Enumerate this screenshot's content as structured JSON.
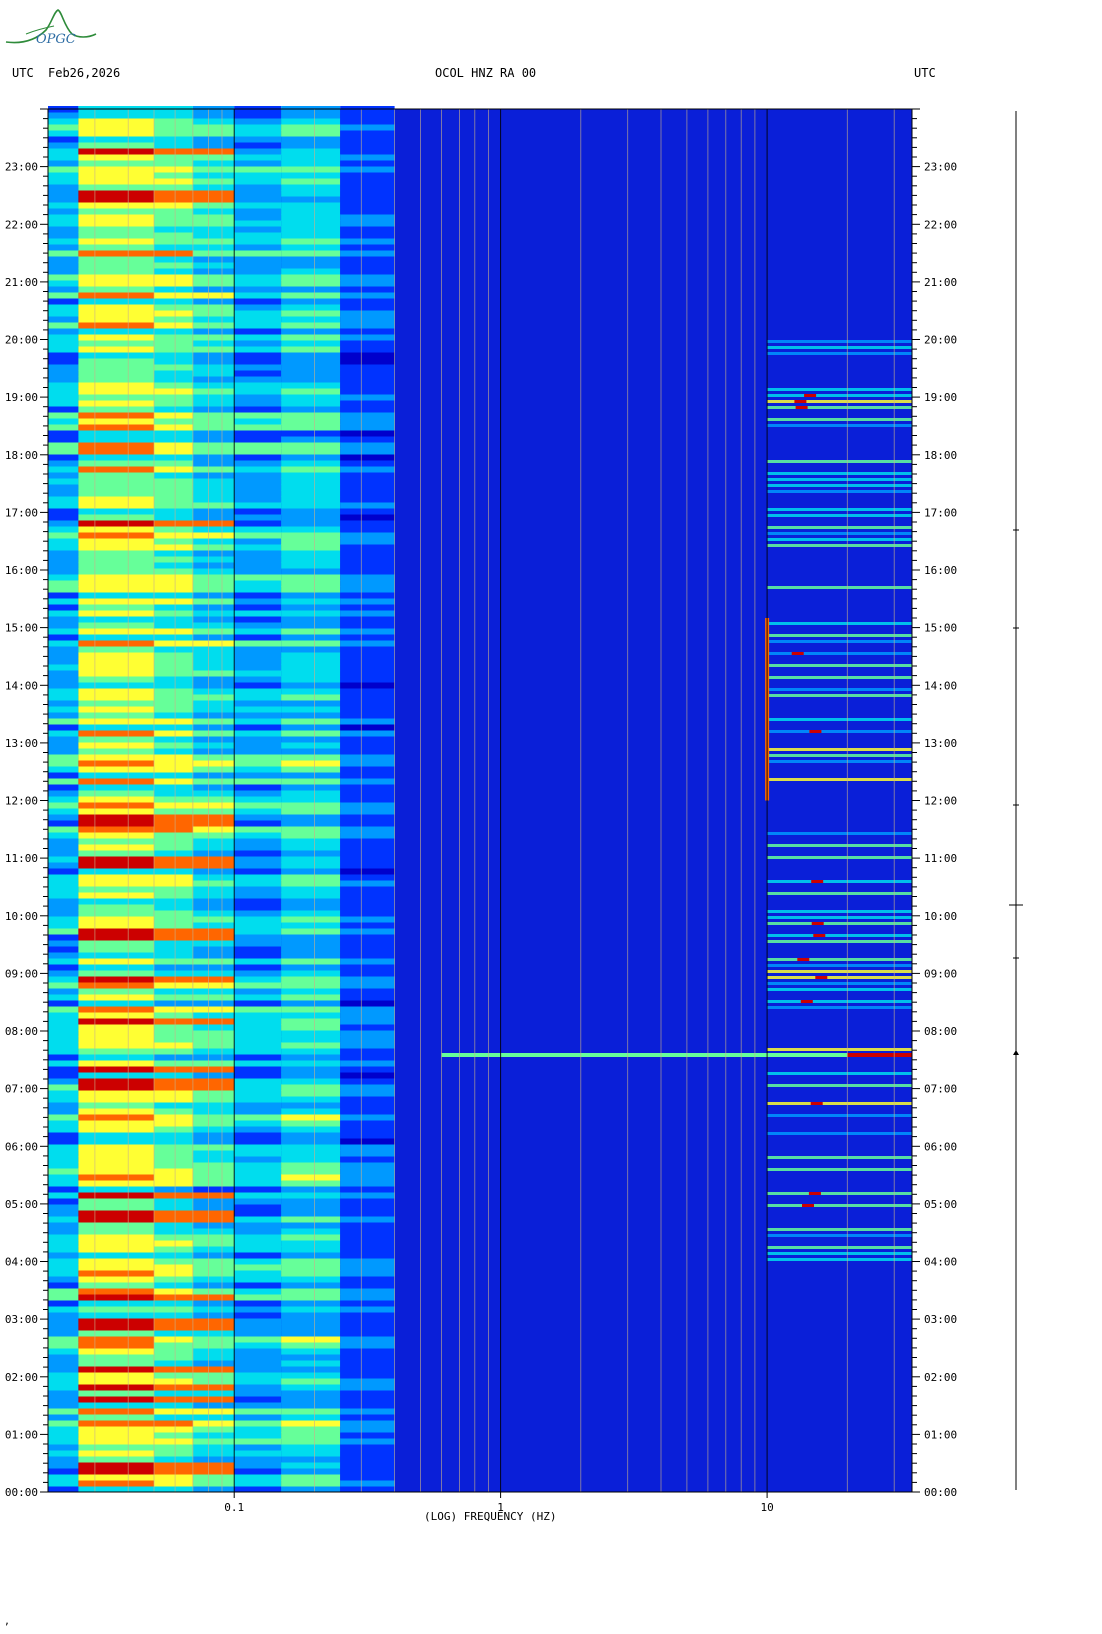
{
  "header": {
    "left_utc": "UTC",
    "date": "Feb26,2026",
    "station": "OCOL HNZ RA 00",
    "right_utc": "UTC"
  },
  "logo": {
    "text": "OPGC"
  },
  "footer": {
    "mark": "‚"
  },
  "chart_data": {
    "type": "heatmap",
    "title": "OCOL HNZ RA 00",
    "xlabel": "(LOG) FREQUENCY (HZ)",
    "ylabel": "UTC",
    "x_scale": "log",
    "xlim": [
      0.02,
      35
    ],
    "x_ticks": [
      {
        "value": 0.1,
        "label": "0.1"
      },
      {
        "value": 1,
        "label": "1"
      },
      {
        "value": 10,
        "label": "10"
      }
    ],
    "y_ticks": [
      "00:00",
      "01:00",
      "02:00",
      "03:00",
      "04:00",
      "05:00",
      "06:00",
      "07:00",
      "08:00",
      "09:00",
      "10:00",
      "11:00",
      "12:00",
      "13:00",
      "14:00",
      "15:00",
      "16:00",
      "17:00",
      "18:00",
      "19:00",
      "20:00",
      "21:00",
      "22:00",
      "23:00"
    ],
    "y_range_hours": [
      0,
      24
    ],
    "colormap": [
      "#0000cc",
      "#0033ff",
      "#0099ff",
      "#00ddee",
      "#66ff99",
      "#ffff33",
      "#ff6600",
      "#cc0000"
    ],
    "background_level": "low (dark blue) above ~0.3 Hz",
    "bands": [
      {
        "fmin": 0.02,
        "fmax": 0.026,
        "level": 0.38
      },
      {
        "fmin": 0.026,
        "fmax": 0.05,
        "level": 0.62
      },
      {
        "fmin": 0.05,
        "fmax": 0.07,
        "level": 0.55
      },
      {
        "fmin": 0.07,
        "fmax": 0.1,
        "level": 0.45
      },
      {
        "fmin": 0.1,
        "fmax": 0.15,
        "level": 0.36
      },
      {
        "fmin": 0.15,
        "fmax": 0.25,
        "level": 0.44
      },
      {
        "fmin": 0.25,
        "fmax": 0.4,
        "level": 0.22
      },
      {
        "fmin": 0.4,
        "fmax": 35,
        "level": 0.06
      }
    ],
    "hot_rows_utc": [
      "00:25",
      "01:35",
      "01:50",
      "02:10",
      "02:55",
      "03:25",
      "04:45",
      "04:50",
      "05:10",
      "07:05",
      "07:20",
      "08:10",
      "08:55",
      "09:40",
      "10:55",
      "11:40",
      "16:50",
      "22:30",
      "23:15"
    ],
    "events": [
      {
        "time_utc": "07:35",
        "fmin": 0.6,
        "fmax": 35,
        "note": "broadband transient"
      },
      {
        "time_utc": "12:00-15:10",
        "freq_hz": 10,
        "note": "narrow band near 10 Hz"
      }
    ],
    "activity_band_hz": [
      10,
      35
    ],
    "activity_window_utc": [
      "04:00",
      "20:00"
    ],
    "grid": true
  }
}
